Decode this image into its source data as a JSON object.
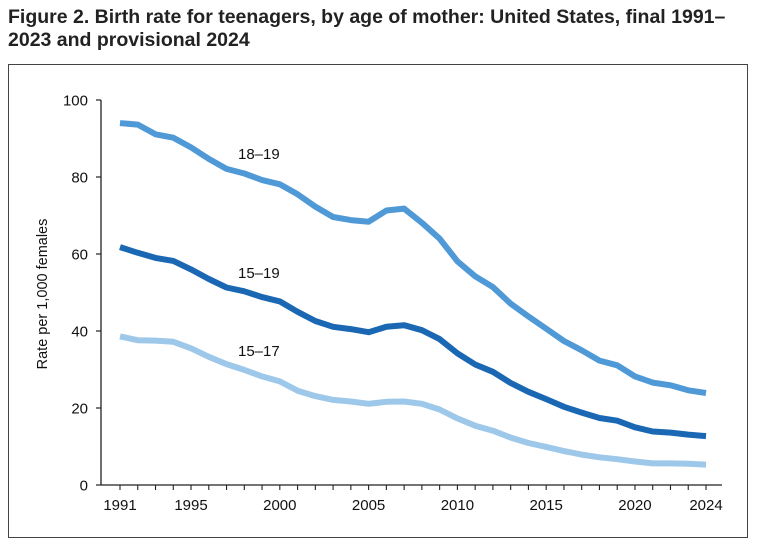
{
  "chart_data": {
    "type": "line",
    "title": "Figure 2. Birth rate for teenagers, by age of mother: United States, final 1991–2023 and provisional 2024",
    "xlabel": "",
    "ylabel": "Rate per 1,000 females",
    "xlim": [
      1991,
      2024
    ],
    "ylim": [
      0,
      100
    ],
    "x_ticks": [
      1991,
      1995,
      2000,
      2005,
      2010,
      2015,
      2020,
      2024
    ],
    "y_ticks": [
      0,
      20,
      40,
      60,
      80,
      100
    ],
    "grid": false,
    "legend": "inline labels",
    "x": [
      1991,
      1992,
      1993,
      1994,
      1995,
      1996,
      1997,
      1998,
      1999,
      2000,
      2001,
      2002,
      2003,
      2004,
      2005,
      2006,
      2007,
      2008,
      2009,
      2010,
      2011,
      2012,
      2013,
      2014,
      2015,
      2016,
      2017,
      2018,
      2019,
      2020,
      2021,
      2022,
      2023,
      2024
    ],
    "series": [
      {
        "name": "18–19",
        "color": "#4f9ad6",
        "values": [
          94.0,
          93.6,
          91.1,
          90.2,
          87.7,
          84.7,
          82.1,
          80.9,
          79.2,
          78.1,
          75.5,
          72.3,
          69.6,
          68.8,
          68.4,
          71.3,
          71.8,
          68.1,
          64.0,
          58.1,
          54.2,
          51.4,
          47.1,
          43.8,
          40.6,
          37.4,
          35.0,
          32.3,
          31.1,
          28.2,
          26.6,
          25.9,
          24.6,
          23.9
        ]
      },
      {
        "name": "15–19",
        "color": "#1a67b3",
        "values": [
          61.8,
          60.3,
          59.0,
          58.2,
          56.0,
          53.5,
          51.3,
          50.3,
          48.8,
          47.7,
          45.0,
          42.6,
          41.1,
          40.5,
          39.7,
          41.1,
          41.5,
          40.2,
          37.9,
          34.2,
          31.3,
          29.4,
          26.5,
          24.2,
          22.3,
          20.3,
          18.8,
          17.4,
          16.7,
          15.0,
          13.9,
          13.6,
          13.1,
          12.7
        ]
      },
      {
        "name": "15–17",
        "color": "#9dc8ea",
        "values": [
          38.6,
          37.6,
          37.5,
          37.2,
          35.5,
          33.3,
          31.4,
          29.9,
          28.2,
          26.9,
          24.5,
          23.1,
          22.1,
          21.7,
          21.1,
          21.6,
          21.7,
          21.1,
          19.6,
          17.3,
          15.4,
          14.1,
          12.3,
          10.9,
          9.9,
          8.8,
          7.9,
          7.2,
          6.7,
          6.1,
          5.6,
          5.6,
          5.5,
          5.3
        ]
      }
    ]
  }
}
